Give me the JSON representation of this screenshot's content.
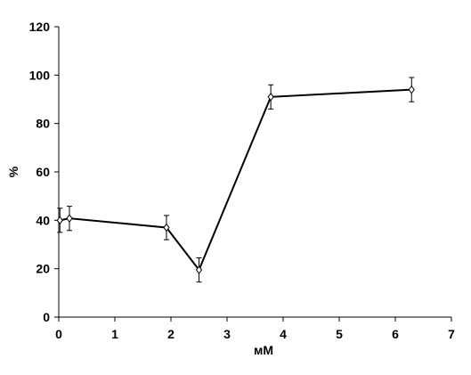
{
  "chart_data": {
    "type": "line",
    "xlabel": "мМ",
    "ylabel": "%",
    "x": [
      0.02,
      0.19,
      1.92,
      2.5,
      3.78,
      6.29
    ],
    "series": [
      {
        "color": "#000000",
        "values": [
          40,
          40.8,
          37,
          19.5,
          91,
          94
        ],
        "errors": [
          5,
          5,
          5,
          5,
          5,
          5
        ]
      }
    ],
    "xlim": [
      0,
      7
    ],
    "xticks": [
      0,
      1,
      2,
      3,
      4,
      5,
      6,
      7
    ],
    "ylim": [
      0,
      120
    ],
    "yticks": [
      0,
      20,
      40,
      60,
      80,
      100,
      120
    ]
  }
}
